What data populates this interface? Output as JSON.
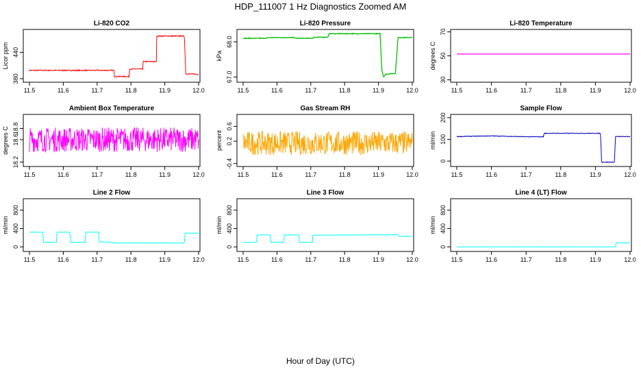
{
  "figure": {
    "title": "HDP_111007  1 Hz Diagnostics Zoomed AM",
    "xlabel": "Hour of Day (UTC)"
  },
  "chart_data": [
    {
      "type": "line",
      "title": "Li-820 CO2",
      "ylabel": "Licor ppm",
      "color": "#ff0000",
      "xlim": [
        11.5,
        12.0
      ],
      "ylim": [
        372,
        492
      ],
      "xticks": [
        "11.5",
        "11.6",
        "11.7",
        "11.8",
        "11.9",
        "12.0"
      ],
      "yticks": [
        "380",
        "440"
      ],
      "ytick_values": [
        380,
        440
      ],
      "noise": 1.2,
      "series": [
        {
          "x": [
            11.5,
            11.75,
            11.751,
            11.795,
            11.796,
            11.835,
            11.836,
            11.875,
            11.876,
            11.958,
            11.962,
            12.0
          ],
          "values": [
            399,
            399,
            385,
            385,
            402,
            402,
            419,
            419,
            477,
            477,
            391,
            390
          ]
        }
      ]
    },
    {
      "type": "line",
      "title": "Li-820 Pressure",
      "ylabel": "kPa",
      "color": "#00c000",
      "xlim": [
        11.5,
        12.0
      ],
      "ylim": [
        66.85,
        68.35
      ],
      "xticks": [
        "11.5",
        "11.6",
        "11.7",
        "11.8",
        "11.9",
        "12.0"
      ],
      "yticks": [
        "67.0",
        "68.0"
      ],
      "ytick_values": [
        67.0,
        68.0
      ],
      "noise": 0.01,
      "series": [
        {
          "x": [
            11.5,
            11.57,
            11.575,
            11.65,
            11.655,
            11.705,
            11.71,
            11.75,
            11.755,
            11.905,
            11.91,
            11.915,
            11.922,
            11.95,
            11.958,
            11.962,
            12.0
          ],
          "values": [
            68.1,
            68.1,
            68.12,
            68.12,
            68.1,
            68.1,
            68.13,
            68.13,
            68.23,
            68.23,
            67.2,
            67.0,
            67.08,
            67.1,
            68.12,
            68.12,
            68.12
          ]
        }
      ]
    },
    {
      "type": "line",
      "title": "Li-820 Temperature",
      "ylabel": "degrees C",
      "color": "#ff00ff",
      "xlim": [
        11.5,
        12.0
      ],
      "ylim": [
        28,
        72
      ],
      "xticks": [
        "11.5",
        "11.6",
        "11.7",
        "11.8",
        "11.9",
        "12.0"
      ],
      "yticks": [
        "30",
        "50",
        "70"
      ],
      "ytick_values": [
        30,
        50,
        70
      ],
      "noise": 0,
      "series": [
        {
          "x": [
            11.5,
            12.0
          ],
          "values": [
            51.5,
            51.5
          ]
        }
      ]
    },
    {
      "type": "line",
      "title": "Ambient Box Temperature",
      "ylabel": "degrees C",
      "color": "#ff00ff",
      "xlim": [
        11.5,
        12.0
      ],
      "ylim": [
        18.12,
        19.05
      ],
      "xticks": [
        "11.5",
        "11.6",
        "11.7",
        "11.8",
        "11.9",
        "12.0"
      ],
      "yticks": [
        "18.2",
        "18.6",
        "18.8"
      ],
      "ytick_values": [
        18.2,
        18.6,
        18.8
      ],
      "noise": 0.22,
      "series": [
        {
          "x": [
            11.5,
            12.0
          ],
          "values": [
            18.6,
            18.6
          ]
        }
      ]
    },
    {
      "type": "line",
      "title": "Gas Stream RH",
      "ylabel": "percent",
      "color": "#ffa500",
      "xlim": [
        11.5,
        12.0
      ],
      "ylim": [
        -0.48,
        0.92
      ],
      "xticks": [
        "11.5",
        "11.6",
        "11.7",
        "11.8",
        "11.9",
        "12.0"
      ],
      "yticks": [
        "-0.4",
        "0.2",
        "0.6"
      ],
      "ytick_values": [
        -0.4,
        0.2,
        0.6
      ],
      "noise": 0.32,
      "series": [
        {
          "x": [
            11.5,
            12.0
          ],
          "values": [
            0.15,
            0.15
          ]
        }
      ]
    },
    {
      "type": "line",
      "title": "Sample Flow",
      "ylabel": "ml/min",
      "color": "#0000c0",
      "xlim": [
        11.5,
        12.0
      ],
      "ylim": [
        -25,
        215
      ],
      "xticks": [
        "11.5",
        "11.6",
        "11.7",
        "11.8",
        "11.9",
        "12.0"
      ],
      "yticks": [
        "0",
        "100",
        "200"
      ],
      "ytick_values": [
        0,
        100,
        200
      ],
      "noise": 1.5,
      "series": [
        {
          "x": [
            11.5,
            11.6,
            11.7,
            11.75,
            11.752,
            11.915,
            11.918,
            11.955,
            11.958,
            12.0
          ],
          "values": [
            113,
            116,
            112,
            112,
            128,
            128,
            -5,
            -5,
            113,
            113
          ]
        }
      ]
    },
    {
      "type": "line",
      "title": "Line 2 Flow",
      "ylabel": "ml/min",
      "color": "#00ffff",
      "xlim": [
        11.5,
        12.0
      ],
      "ylim": [
        -100,
        1050
      ],
      "xticks": [
        "11.5",
        "11.6",
        "11.7",
        "11.8",
        "11.9",
        "12.0"
      ],
      "yticks": [
        "0",
        "400",
        "800"
      ],
      "ytick_values": [
        0,
        400,
        800
      ],
      "noise": 4,
      "series": [
        {
          "x": [
            11.5,
            11.54,
            11.541,
            11.58,
            11.581,
            11.62,
            11.621,
            11.665,
            11.666,
            11.705,
            11.706,
            11.745,
            11.746,
            11.958,
            11.96,
            12.0
          ],
          "values": [
            320,
            320,
            100,
            100,
            320,
            320,
            100,
            100,
            320,
            320,
            105,
            105,
            85,
            85,
            300,
            300
          ]
        }
      ]
    },
    {
      "type": "line",
      "title": "Line 3 Flow",
      "ylabel": "ml/min",
      "color": "#00ffff",
      "xlim": [
        11.5,
        12.0
      ],
      "ylim": [
        -100,
        1050
      ],
      "xticks": [
        "11.5",
        "11.6",
        "11.7",
        "11.8",
        "11.9",
        "12.0"
      ],
      "yticks": [
        "0",
        "400",
        "800"
      ],
      "ytick_values": [
        0,
        400,
        800
      ],
      "noise": 4,
      "series": [
        {
          "x": [
            11.5,
            11.54,
            11.541,
            11.58,
            11.581,
            11.62,
            11.621,
            11.665,
            11.666,
            11.705,
            11.706,
            11.958,
            11.96,
            12.0
          ],
          "values": [
            100,
            100,
            260,
            260,
            100,
            100,
            260,
            260,
            100,
            100,
            255,
            265,
            230,
            230
          ]
        }
      ]
    },
    {
      "type": "line",
      "title": "Line 4 (LT) Flow",
      "ylabel": "ml/min",
      "color": "#00ffff",
      "xlim": [
        11.5,
        12.0
      ],
      "ylim": [
        -100,
        1050
      ],
      "xticks": [
        "11.5",
        "11.6",
        "11.7",
        "11.8",
        "11.9",
        "12.0"
      ],
      "yticks": [
        "0",
        "400",
        "800"
      ],
      "ytick_values": [
        0,
        400,
        800
      ],
      "noise": 2,
      "series": [
        {
          "x": [
            11.5,
            11.958,
            11.96,
            12.0
          ],
          "values": [
            0,
            0,
            90,
            90
          ]
        }
      ]
    }
  ]
}
